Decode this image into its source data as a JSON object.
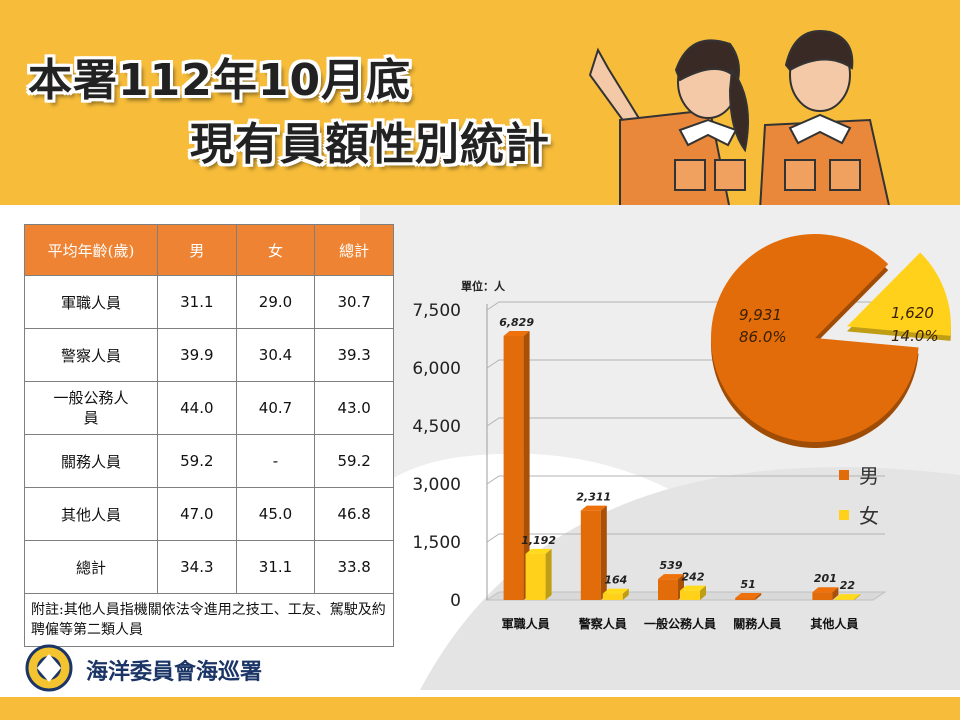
{
  "title": {
    "line1": "本署112年10月底",
    "line2": "現有員額性別統計"
  },
  "table": {
    "headers": [
      "平均年齡(歲)",
      "男",
      "女",
      "總計"
    ],
    "rows": [
      {
        "label": "軍職人員",
        "male": "31.1",
        "female": "29.0",
        "total": "30.7"
      },
      {
        "label": "警察人員",
        "male": "39.9",
        "female": "30.4",
        "total": "39.3"
      },
      {
        "label": "一般公務人員",
        "male": "44.0",
        "female": "40.7",
        "total": "43.0"
      },
      {
        "label": "關務人員",
        "male": "59.2",
        "female": "-",
        "total": "59.2"
      },
      {
        "label": "其他人員",
        "male": "47.0",
        "female": "45.0",
        "total": "46.8"
      },
      {
        "label": "總計",
        "male": "34.3",
        "female": "31.1",
        "total": "33.8"
      }
    ],
    "note": "附註:其他人員指機關依法令進用之技工、工友、駕駛及約聘僱等第二類人員"
  },
  "org_name": "海洋委員會海巡署",
  "colors": {
    "male": "#e36c0a",
    "female": "#ffd11a",
    "header": "#ee8433",
    "band": "#f7bd3a"
  },
  "chart_data": [
    {
      "type": "bar",
      "unit_label": "單位：人",
      "categories": [
        "軍職人員",
        "警察人員",
        "一般公務人員",
        "關務人員",
        "其他人員"
      ],
      "series": [
        {
          "name": "男",
          "values": [
            6829,
            2311,
            539,
            51,
            201
          ],
          "labels": [
            "6,829",
            "2,311",
            "539",
            "51",
            "201"
          ]
        },
        {
          "name": "女",
          "values": [
            1192,
            164,
            242,
            0,
            22
          ],
          "labels": [
            "1,192",
            "164",
            "242",
            "",
            "22"
          ]
        }
      ],
      "yticks": [
        "0",
        "1,500",
        "3,000",
        "4,500",
        "6,000",
        "7,500"
      ],
      "ylim": [
        0,
        7500
      ],
      "legend": [
        "男",
        "女"
      ],
      "legend_position": "right"
    },
    {
      "type": "pie",
      "slices": [
        {
          "name": "男",
          "value": 9931,
          "label": "9,931",
          "percent": "86.0%"
        },
        {
          "name": "女",
          "value": 1620,
          "label": "1,620",
          "percent": "14.0%"
        }
      ]
    }
  ]
}
